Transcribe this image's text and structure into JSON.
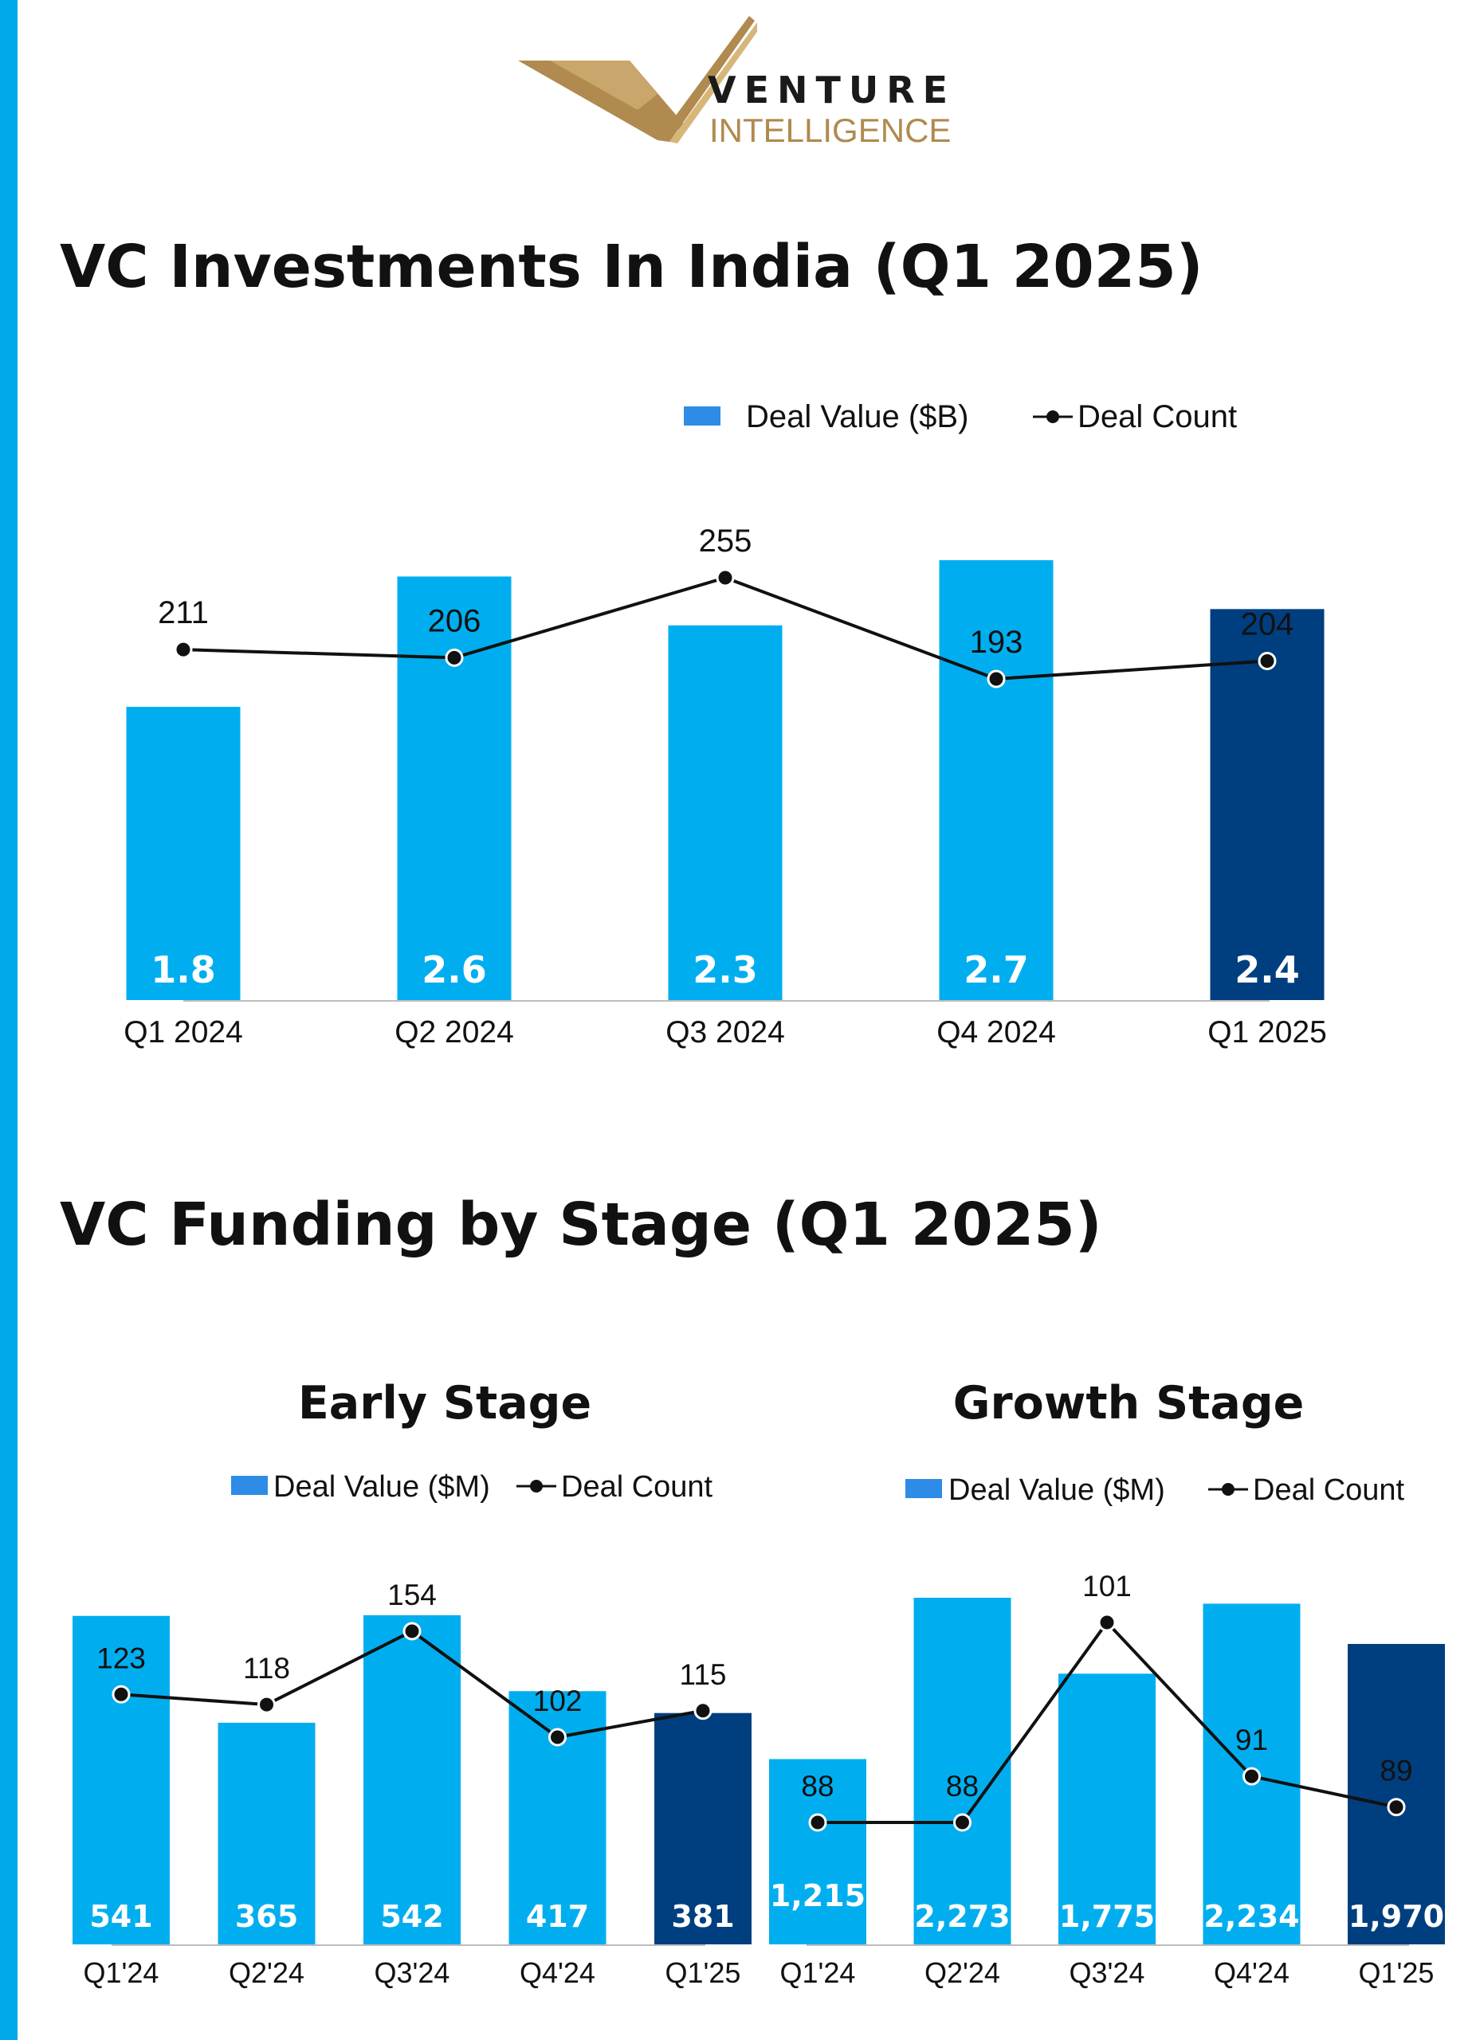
{
  "logo": {
    "word1": "VENTURE",
    "word2": "INTELLIGENCE",
    "gold": "#B08A4E"
  },
  "colors": {
    "accent": "#00A8E8",
    "bar": "#00AEEF",
    "bar_highlight": "#003F7F",
    "legend_bar": "#2E8BE6",
    "line": "#111111"
  },
  "section1": {
    "title": "VC Investments In India (Q1 2025)"
  },
  "section2": {
    "title": "VC Funding by Stage (Q1 2025)"
  },
  "chart_data": [
    {
      "type": "bar",
      "title": "",
      "categories": [
        "Q1 2024",
        "Q2 2024",
        "Q3 2024",
        "Q4 2024",
        "Q1 2025"
      ],
      "series": [
        {
          "name": "Deal Value ($B)",
          "values": [
            1.8,
            2.6,
            2.3,
            2.7,
            2.4
          ],
          "labels": [
            "1.8",
            "2.6",
            "2.3",
            "2.7",
            "2.4"
          ],
          "highlight_last": true
        },
        {
          "name": "Deal Count",
          "type": "line",
          "values": [
            211,
            206,
            255,
            193,
            204
          ],
          "labels": [
            "211",
            "206",
            "255",
            "193",
            "204"
          ]
        }
      ],
      "legend": "top-right"
    },
    {
      "type": "bar",
      "title": "Early Stage",
      "categories": [
        "Q1'24",
        "Q2'24",
        "Q3'24",
        "Q4'24",
        "Q1'25"
      ],
      "series": [
        {
          "name": "Deal Value ($M)",
          "values": [
            541,
            365,
            542,
            417,
            381
          ],
          "labels": [
            "541",
            "365",
            "542",
            "417",
            "381"
          ],
          "highlight_last": true
        },
        {
          "name": "Deal Count",
          "type": "line",
          "values": [
            123,
            118,
            154,
            102,
            115
          ],
          "labels": [
            "123",
            "118",
            "154",
            "102",
            "115"
          ]
        }
      ],
      "legend": "top"
    },
    {
      "type": "bar",
      "title": "Growth Stage",
      "categories": [
        "Q1'24",
        "Q2'24",
        "Q3'24",
        "Q4'24",
        "Q1'25"
      ],
      "series": [
        {
          "name": "Deal Value ($M)",
          "values": [
            1215,
            2273,
            1775,
            2234,
            1970
          ],
          "labels": [
            "1,215",
            "2,273",
            "1,775",
            "2,234",
            "1,970"
          ],
          "highlight_last": true
        },
        {
          "name": "Deal Count",
          "type": "line",
          "values": [
            88,
            88,
            101,
            91,
            89
          ],
          "labels": [
            "88",
            "88",
            "101",
            "91",
            "89"
          ]
        }
      ],
      "legend": "top"
    }
  ]
}
